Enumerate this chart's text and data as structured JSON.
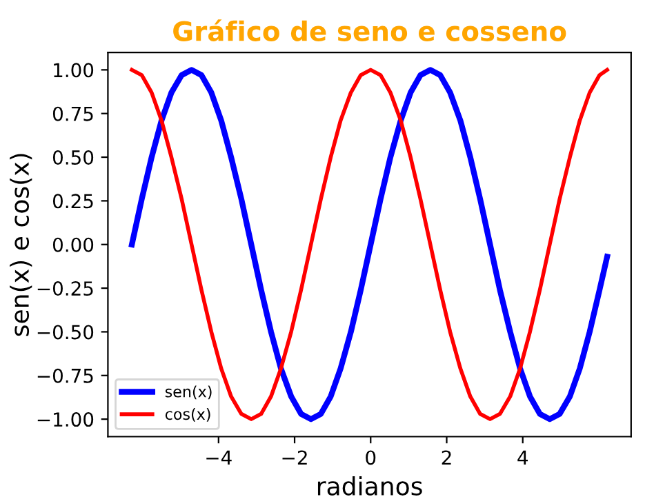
{
  "chart_data": {
    "type": "line",
    "title": "Gráfico de seno e cosseno",
    "xlabel": "radianos",
    "ylabel": "sen(x) e cos(x)",
    "x": [
      -6.28,
      -6.02,
      -5.76,
      -5.5,
      -5.24,
      -4.97,
      -4.71,
      -4.45,
      -4.19,
      -3.93,
      -3.67,
      -3.4,
      -3.14,
      -2.88,
      -2.62,
      -2.36,
      -2.09,
      -1.83,
      -1.57,
      -1.31,
      -1.05,
      -0.79,
      -0.52,
      -0.26,
      0,
      0.26,
      0.52,
      0.79,
      1.05,
      1.31,
      1.57,
      1.83,
      2.09,
      2.36,
      2.62,
      2.88,
      3.14,
      3.4,
      3.67,
      3.93,
      4.19,
      4.45,
      4.71,
      4.97,
      5.24,
      5.5,
      5.76,
      6.02,
      6.22
    ],
    "series": [
      {
        "name": "sen(x)",
        "color": "#0000ff",
        "values": [
          0,
          0.26,
          0.5,
          0.71,
          0.87,
          0.97,
          1,
          0.97,
          0.87,
          0.71,
          0.5,
          0.26,
          0,
          -0.26,
          -0.5,
          -0.71,
          -0.87,
          -0.97,
          -1,
          -0.97,
          -0.87,
          -0.71,
          -0.5,
          -0.26,
          0,
          0.26,
          0.5,
          0.71,
          0.87,
          0.97,
          1,
          0.97,
          0.87,
          0.71,
          0.5,
          0.26,
          0,
          -0.26,
          -0.5,
          -0.71,
          -0.87,
          -0.97,
          -1,
          -0.97,
          -0.87,
          -0.71,
          -0.5,
          -0.26,
          -0.07
        ]
      },
      {
        "name": "cos(x)",
        "color": "#ff0000",
        "values": [
          1,
          0.97,
          0.87,
          0.71,
          0.5,
          0.26,
          0,
          -0.26,
          -0.5,
          -0.71,
          -0.87,
          -0.97,
          -1,
          -0.97,
          -0.87,
          -0.71,
          -0.5,
          -0.26,
          0,
          0.26,
          0.5,
          0.71,
          0.87,
          0.97,
          1,
          0.97,
          0.87,
          0.71,
          0.5,
          0.26,
          0,
          -0.26,
          -0.5,
          -0.71,
          -0.87,
          -0.97,
          -1,
          -0.97,
          -0.87,
          -0.71,
          -0.5,
          -0.26,
          0,
          0.26,
          0.5,
          0.71,
          0.87,
          0.97,
          1
        ]
      }
    ],
    "xlim": [
      -6.91,
      6.85
    ],
    "ylim": [
      -1.1,
      1.1
    ],
    "xticks": [
      -4,
      -2,
      0,
      2,
      4
    ],
    "yticks": [
      {
        "value": -1,
        "label": "−1.00"
      },
      {
        "value": -0.75,
        "label": "−0.75"
      },
      {
        "value": -0.5,
        "label": "−0.50"
      },
      {
        "value": -0.25,
        "label": "−0.25"
      },
      {
        "value": 0,
        "label": "0.00"
      },
      {
        "value": 0.25,
        "label": "0.25"
      },
      {
        "value": 0.5,
        "label": "0.50"
      },
      {
        "value": 0.75,
        "label": "0.75"
      },
      {
        "value": 1,
        "label": "1.00"
      }
    ],
    "legend": "bottom left",
    "grid": false,
    "line_style": "solid",
    "marker": "none"
  }
}
